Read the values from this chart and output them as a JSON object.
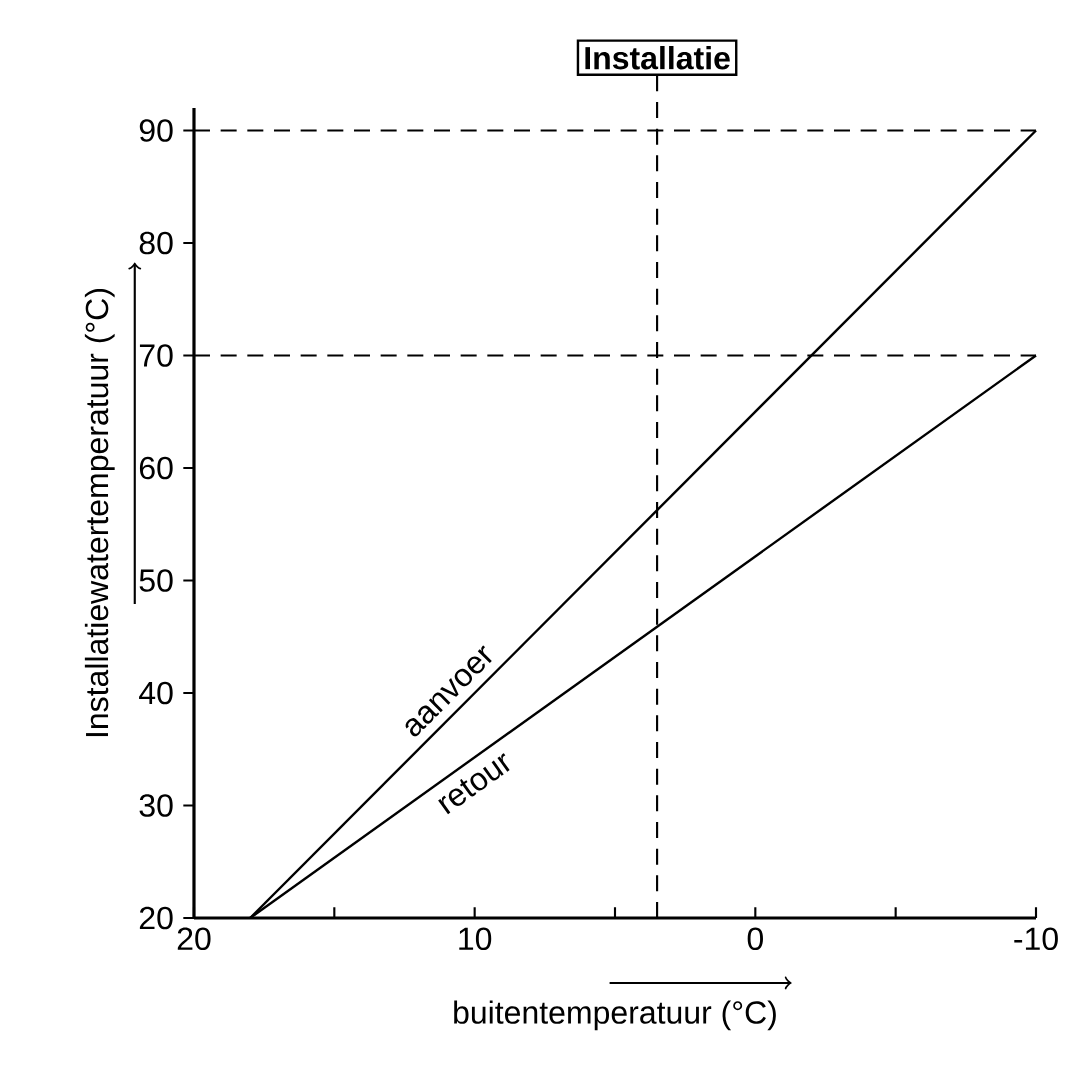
{
  "chart_data": {
    "type": "line",
    "xlabel": "buitentemperatuur (°C)",
    "ylabel": "Installatiewatertemperatuur (°C)",
    "series": [
      {
        "name": "aanvoer",
        "color": "#000000",
        "values": [
          20,
          90
        ]
      },
      {
        "name": "retour",
        "color": "#000000",
        "values": [
          20,
          70
        ]
      }
    ],
    "x": [
      18,
      -10
    ],
    "xlim": [
      20,
      -10
    ],
    "ylim": [
      20,
      92
    ],
    "xticks": [
      20,
      {
        "value": 15,
        "label": null
      },
      10,
      {
        "value": 5,
        "label": null
      },
      0,
      {
        "value": -5,
        "label": null
      },
      -10
    ],
    "yticks": [
      20,
      30,
      40,
      50,
      60,
      70,
      80,
      90
    ],
    "ref_lines": [
      {
        "axis": "y",
        "value": 90,
        "label": null,
        "line_style": "dashed"
      },
      {
        "axis": "y",
        "value": 70,
        "label": null,
        "line_style": "dashed"
      },
      {
        "axis": "x",
        "value": 3.5,
        "label": "Installatie",
        "line_style": "dashed"
      }
    ],
    "grid": false,
    "marker": "none",
    "line_style": "solid"
  }
}
